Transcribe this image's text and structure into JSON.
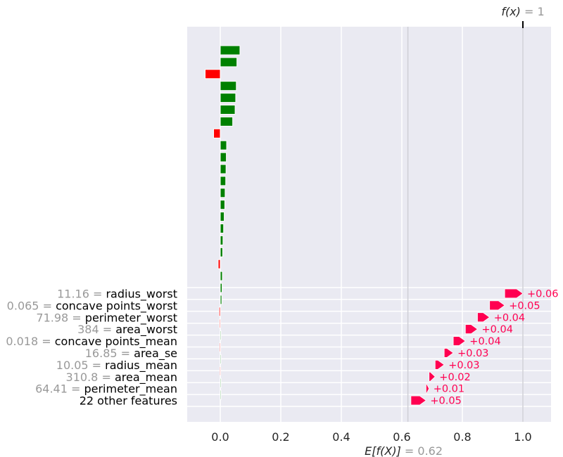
{
  "chart_data": [
    {
      "type": "bar",
      "orientation": "horizontal",
      "title": "",
      "xlabel": "",
      "ylabel": "",
      "xlim": [
        -0.11,
        1.09
      ],
      "grid": true,
      "x_ticks": [
        "0.0",
        "0.2",
        "0.4",
        "0.6",
        "0.8",
        "1.0"
      ],
      "colors": {
        "positive": "#008000",
        "negative": "#ff0000"
      },
      "values": [
        0.065,
        0.055,
        -0.05,
        0.053,
        0.051,
        0.049,
        0.041,
        -0.022,
        0.021,
        0.02,
        0.019,
        0.018,
        0.016,
        0.015,
        0.013,
        0.011,
        0.009,
        0.008,
        -0.007,
        0.007,
        0.006,
        0.005,
        -0.004,
        -0.003,
        0.002,
        -0.002,
        0.0015,
        -0.0015,
        0.0012,
        0.001
      ]
    },
    {
      "type": "waterfall",
      "base_value": 0.62,
      "output_value": 1,
      "features": [
        {
          "value": "11.16",
          "name": "radius_worst",
          "shap": 0.06,
          "label": "+0.06"
        },
        {
          "value": "0.065",
          "name": "concave points_worst",
          "shap": 0.05,
          "label": "+0.05"
        },
        {
          "value": "71.98",
          "name": "perimeter_worst",
          "shap": 0.04,
          "label": "+0.04"
        },
        {
          "value": "384",
          "name": "area_worst",
          "shap": 0.04,
          "label": "+0.04"
        },
        {
          "value": "0.018",
          "name": "concave points_mean",
          "shap": 0.04,
          "label": "+0.04"
        },
        {
          "value": "16.85",
          "name": "area_se",
          "shap": 0.03,
          "label": "+0.03"
        },
        {
          "value": "10.05",
          "name": "radius_mean",
          "shap": 0.03,
          "label": "+0.03"
        },
        {
          "value": "310.8",
          "name": "area_mean",
          "shap": 0.02,
          "label": "+0.02"
        },
        {
          "value": "64.41",
          "name": "perimeter_mean",
          "shap": 0.01,
          "label": "+0.01"
        },
        {
          "value": "",
          "name": "22 other features",
          "shap": 0.05,
          "label": "+0.05"
        }
      ],
      "top_annotation": {
        "text": "f(x)",
        "value": "= 1"
      },
      "bottom_annotation": {
        "text": "E[f(X)]",
        "value": "= 0.62"
      },
      "color": "#ff0051"
    }
  ]
}
